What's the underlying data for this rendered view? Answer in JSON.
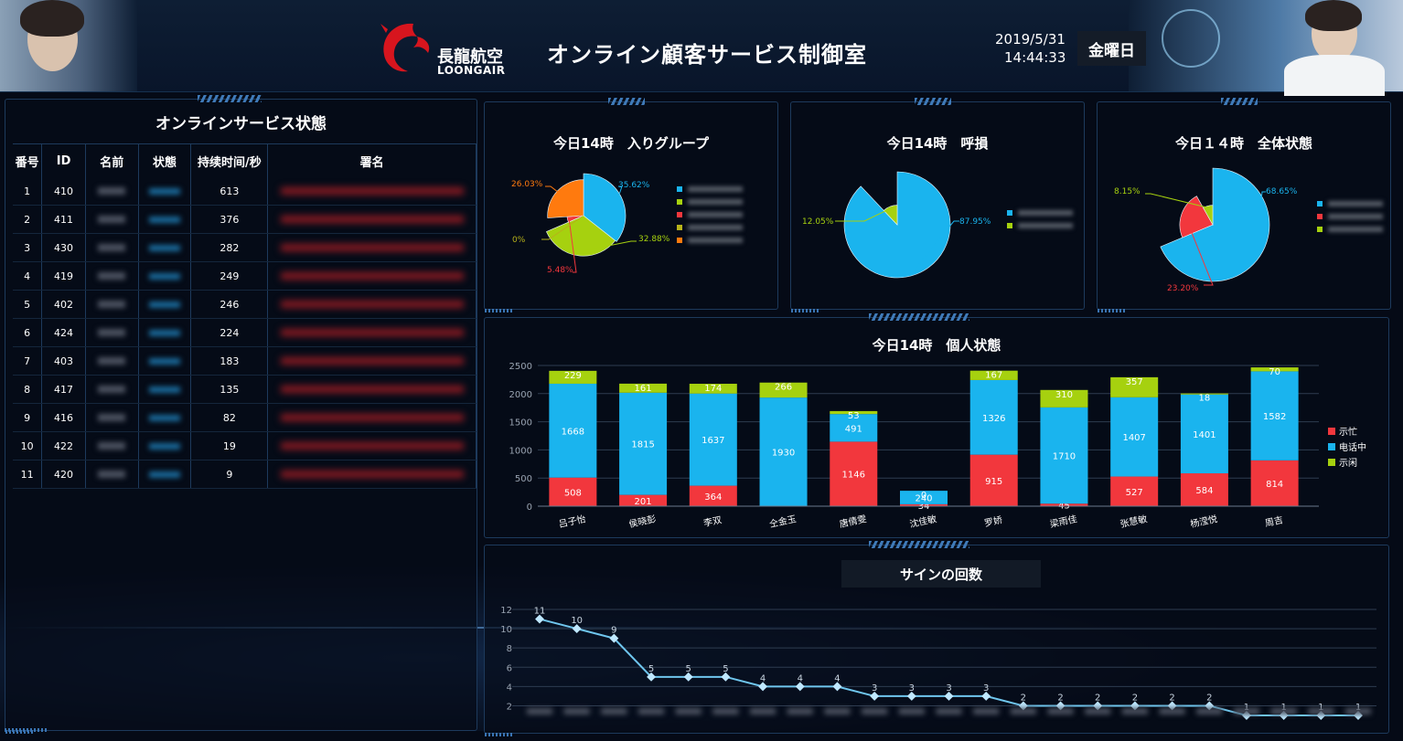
{
  "header": {
    "logo_cn": "長龍航空",
    "logo_en": "LOONGAIR",
    "title": "オンライン顧客サービス制御室",
    "date": "2019/5/31",
    "time": "14:44:33",
    "weekday": "金曜日"
  },
  "service_table": {
    "title": "オンラインサービス状態",
    "headers": [
      "番号",
      "ID",
      "名前",
      "状態",
      "持续时间/秒",
      "署名"
    ],
    "rows": [
      {
        "no": "1",
        "id": "410",
        "duration": "613"
      },
      {
        "no": "2",
        "id": "411",
        "duration": "376"
      },
      {
        "no": "3",
        "id": "430",
        "duration": "282"
      },
      {
        "no": "4",
        "id": "419",
        "duration": "249"
      },
      {
        "no": "5",
        "id": "402",
        "duration": "246"
      },
      {
        "no": "6",
        "id": "424",
        "duration": "224"
      },
      {
        "no": "7",
        "id": "403",
        "duration": "183"
      },
      {
        "no": "8",
        "id": "417",
        "duration": "135"
      },
      {
        "no": "9",
        "id": "416",
        "duration": "82"
      },
      {
        "no": "10",
        "id": "422",
        "duration": "19"
      },
      {
        "no": "11",
        "id": "420",
        "duration": "9"
      }
    ]
  },
  "colors": {
    "red": "#f2373d",
    "blue": "#1ab4ee",
    "green": "#a6d10f",
    "orange": "#ff7a0e",
    "olive": "#b7b31a"
  },
  "chart_data": [
    {
      "type": "pie",
      "title": "今日14時　入りグループ",
      "slices": [
        {
          "label": "35.62%",
          "value": 35.62,
          "color": "#1ab4ee"
        },
        {
          "label": "32.88%",
          "value": 32.88,
          "color": "#a6d10f"
        },
        {
          "label": "5.48%",
          "value": 5.48,
          "color": "#f2373d"
        },
        {
          "label": "0%",
          "value": 0,
          "color": "#b7b31a"
        },
        {
          "label": "26.03%",
          "value": 26.03,
          "color": "#ff7a0e"
        }
      ],
      "legend": "right"
    },
    {
      "type": "pie",
      "title": "今日14時　呼損",
      "slices": [
        {
          "label": "87.95%",
          "value": 87.95,
          "color": "#1ab4ee"
        },
        {
          "label": "12.05%",
          "value": 12.05,
          "color": "#a6d10f"
        }
      ],
      "legend": "right"
    },
    {
      "type": "pie",
      "title": "今日１４時　全体状態",
      "slices": [
        {
          "label": "68.65%",
          "value": 68.65,
          "color": "#1ab4ee"
        },
        {
          "label": "23.20%",
          "value": 23.2,
          "color": "#f2373d"
        },
        {
          "label": "8.15%",
          "value": 8.15,
          "color": "#a6d10f"
        }
      ],
      "legend": "right"
    },
    {
      "type": "bar",
      "stacked": true,
      "title": "今日14時　個人状態",
      "categories": [
        "吕子怡",
        "侯晓彭",
        "李双",
        "仝金玉",
        "唐倩雯",
        "沈佳敏",
        "罗娇",
        "梁雨佳",
        "张慧敏",
        "杨滢悦",
        "周吉"
      ],
      "series": [
        {
          "name": "示忙",
          "color": "#f2373d",
          "values": [
            508,
            201,
            364,
            0,
            1146,
            34,
            915,
            45,
            527,
            584,
            814
          ]
        },
        {
          "name": "电话中",
          "color": "#1ab4ee",
          "values": [
            1668,
            1815,
            1637,
            1930,
            491,
            240,
            1326,
            1710,
            1407,
            1401,
            1582
          ]
        },
        {
          "name": "示闲",
          "color": "#a6d10f",
          "values": [
            229,
            161,
            174,
            266,
            53,
            0,
            167,
            310,
            357,
            18,
            70
          ]
        }
      ],
      "y_ticks": [
        "0",
        "500",
        "1000",
        "1500",
        "2000",
        "2500"
      ],
      "ylim": [
        0,
        2500
      ],
      "legend": "right",
      "grid": true
    },
    {
      "type": "line",
      "title": "サインの回数",
      "values": [
        11,
        10,
        9,
        5,
        5,
        5,
        4,
        4,
        4,
        3,
        3,
        3,
        3,
        2,
        2,
        2,
        2,
        2,
        2,
        1,
        1,
        1,
        1
      ],
      "y_ticks": [
        "2",
        "4",
        "6",
        "8",
        "10",
        "12"
      ],
      "ylim": [
        0,
        12
      ],
      "grid": true,
      "color": "#6fc6ee"
    }
  ]
}
